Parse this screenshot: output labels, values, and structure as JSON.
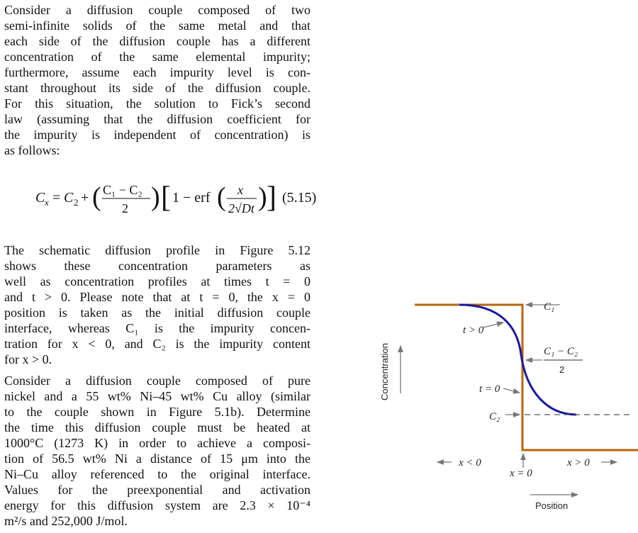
{
  "paragraph1": [
    "Consider a diffusion couple composed of two",
    "semi-infinite solids of the same metal and that",
    "each side of the diffusion couple has a different",
    "concentration of the same elemental impurity;",
    "furthermore, assume each impurity level is con-",
    "stant throughout its side of the diffusion couple.",
    "For this situation, the solution to Fick’s second",
    "law (assuming that the diffusion coefficient for",
    "the impurity is independent of concentration) is",
    "as follows:"
  ],
  "equation": {
    "lhs": "C",
    "lhs_sub": "x",
    "c2": "C",
    "c2_sub": "2",
    "num": "C₁ − C₂",
    "den": "2",
    "bracket_text": "1 − erf",
    "x": "x",
    "den2": "2√Dt",
    "number": "(5.15)"
  },
  "paragraph2": [
    "The schematic diffusion profile in Figure 5.12",
    "shows these concentration parameters as",
    "well as concentration profiles at times t = 0",
    "and t > 0. Please note that at t = 0, the x = 0",
    "position is taken as the initial diffusion couple",
    "interface, whereas C₁ is the impurity concen-",
    "tration for x < 0, and C₂ is the impurity content",
    "for x > 0."
  ],
  "paragraph3": [
    "Consider a diffusion couple composed of pure",
    "nickel and a 55 wt% Ni–45 wt% Cu alloy (similar",
    "to the couple shown in Figure 5.1b). Determine",
    "the time this diffusion couple must be heated at",
    "1000°C (1273 K) in order to achieve a composi-",
    "tion of 56.5 wt% Ni a distance of 15 μm into the",
    "Ni–Cu alloy referenced to the original interface.",
    "Values for the preexponential and activation",
    "energy for this diffusion system are 2.3 × 10⁻⁴",
    "m²/s and 252,000 J/mol."
  ],
  "figure": {
    "y_label": "Concentration",
    "x_label": "Position",
    "c1": "C₁",
    "c2": "C₂",
    "mid_num": "C₁ − C₂",
    "mid_den": "2",
    "t_pos": "t > 0",
    "t_zero": "t = 0",
    "x_neg": "x < 0",
    "x_zero": "x = 0",
    "x_pos": "x > 0",
    "colors": {
      "step": "#b8660b",
      "curve": "#1a1a9c",
      "arrow": "#777777"
    }
  }
}
